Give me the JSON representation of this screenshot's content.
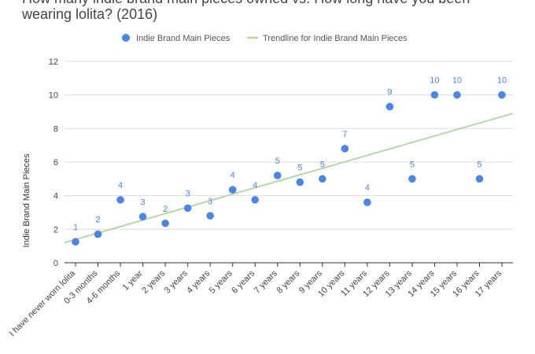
{
  "chart_data": {
    "type": "scatter",
    "title_line1": "How many indie brand main pieces owned vs. How long have you been",
    "title_line2": "wearing lolita? (2016)",
    "ylabel": "Indie Brand Main Pieces",
    "xlabel": "",
    "ylim": [
      0,
      12
    ],
    "yticks": [
      0,
      2,
      4,
      6,
      8,
      10,
      12
    ],
    "grid": true,
    "legend_position": "top",
    "categories": [
      "I have never worn lolita",
      "0-3 months",
      "4-6 months",
      "1 year",
      "2 years",
      "3 years",
      "4 years",
      "5 years",
      "6 years",
      "7 years",
      "8 years",
      "9 years",
      "10 years",
      "11 years",
      "12 years",
      "13 years",
      "14 years",
      "15 years",
      "16 years",
      "17 years"
    ],
    "series": [
      {
        "name": "Indie Brand Main Pieces",
        "color": "#4a86e8",
        "values": [
          1.25,
          1.7,
          3.75,
          2.75,
          2.35,
          3.25,
          2.8,
          4.35,
          3.75,
          5.2,
          4.8,
          5.0,
          6.8,
          3.6,
          9.3,
          5.0,
          10.0,
          10.0,
          5.0,
          10.0
        ],
        "labels": [
          "1",
          "2",
          "4",
          "3",
          "2",
          "3",
          "3",
          "4",
          "4",
          "5",
          "5",
          "5",
          "7",
          "4",
          "9",
          "5",
          "10",
          "10",
          "5",
          "10"
        ]
      }
    ],
    "trendline": {
      "name": "Trendline for Indie Brand Main Pieces",
      "color": "#b7d7a8",
      "y_start": 1.2,
      "y_end": 8.9
    }
  }
}
